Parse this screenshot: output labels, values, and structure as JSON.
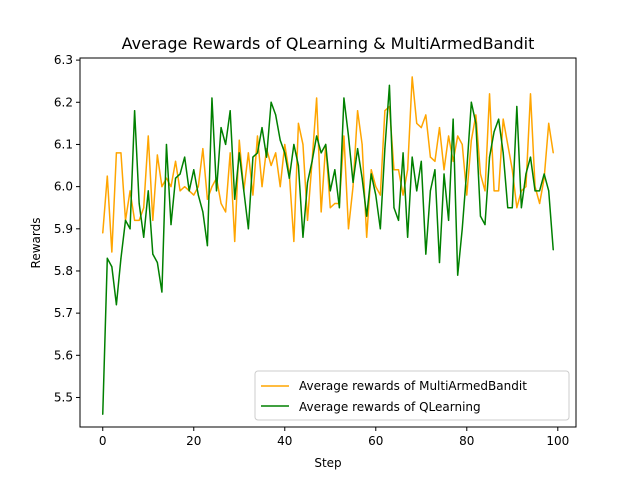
{
  "chart_data": {
    "type": "line",
    "title": "Average Rewards of QLearning & MultiArmedBandit",
    "xlabel": "Step",
    "ylabel": "Rewards",
    "xlim": [
      -5,
      104
    ],
    "ylim": [
      5.43,
      6.305
    ],
    "xticks": [
      0,
      20,
      40,
      60,
      80,
      100
    ],
    "yticks": [
      5.5,
      5.6,
      5.7,
      5.8,
      5.9,
      6.0,
      6.1,
      6.2,
      6.3
    ],
    "xtick_labels": [
      "0",
      "20",
      "40",
      "60",
      "80",
      "100"
    ],
    "ytick_labels": [
      "5.5",
      "5.6",
      "5.7",
      "5.8",
      "5.9",
      "6.0",
      "6.1",
      "6.2",
      "6.3"
    ],
    "grid": false,
    "legend_position": "lower-right",
    "x": [
      0,
      1,
      2,
      3,
      4,
      5,
      6,
      7,
      8,
      9,
      10,
      11,
      12,
      13,
      14,
      15,
      16,
      17,
      18,
      19,
      20,
      21,
      22,
      23,
      24,
      25,
      26,
      27,
      28,
      29,
      30,
      31,
      32,
      33,
      34,
      35,
      36,
      37,
      38,
      39,
      40,
      41,
      42,
      43,
      44,
      45,
      46,
      47,
      48,
      49,
      50,
      51,
      52,
      53,
      54,
      55,
      56,
      57,
      58,
      59,
      60,
      61,
      62,
      63,
      64,
      65,
      66,
      67,
      68,
      69,
      70,
      71,
      72,
      73,
      74,
      75,
      76,
      77,
      78,
      79,
      80,
      81,
      82,
      83,
      84,
      85,
      86,
      87,
      88,
      89,
      90,
      91,
      92,
      93,
      94,
      95,
      96,
      97,
      98,
      99
    ],
    "series": [
      {
        "name": "Average rewards of MultiArmedBandit",
        "color": "#ffa500",
        "values": [
          5.89,
          6.025,
          5.845,
          6.08,
          6.08,
          5.92,
          5.99,
          5.92,
          5.92,
          5.95,
          6.12,
          5.92,
          6.075,
          6.0,
          6.02,
          6.0,
          6.06,
          5.99,
          6.0,
          5.99,
          5.98,
          6.0,
          6.09,
          5.97,
          6.0,
          6.02,
          5.96,
          5.94,
          6.08,
          5.87,
          6.11,
          5.99,
          6.08,
          5.98,
          6.12,
          6.0,
          6.09,
          6.05,
          6.08,
          6.0,
          6.1,
          6.03,
          5.87,
          6.15,
          6.1,
          5.92,
          6.06,
          6.21,
          5.94,
          6.1,
          5.95,
          5.96,
          5.96,
          6.12,
          5.9,
          6.0,
          6.18,
          6.1,
          5.88,
          6.04,
          6.0,
          5.98,
          6.18,
          6.19,
          6.04,
          6.04,
          5.98,
          6.04,
          6.26,
          6.15,
          6.14,
          6.17,
          6.07,
          6.06,
          6.14,
          6.04,
          6.12,
          6.06,
          6.12,
          6.1,
          5.98,
          6.11,
          6.17,
          6.03,
          5.99,
          6.22,
          5.99,
          5.99,
          6.16,
          6.1,
          6.04,
          5.95,
          5.99,
          6.0,
          6.22,
          6.0,
          5.96,
          6.02,
          6.15,
          6.08
        ]
      },
      {
        "name": "Average rewards of QLearning",
        "color": "#008000",
        "values": [
          5.46,
          5.83,
          5.81,
          5.72,
          5.83,
          5.92,
          5.9,
          6.18,
          5.96,
          5.88,
          5.99,
          5.84,
          5.82,
          5.75,
          6.1,
          5.91,
          6.02,
          6.03,
          6.07,
          5.99,
          6.04,
          5.98,
          5.94,
          5.86,
          6.21,
          5.99,
          6.14,
          6.1,
          6.18,
          5.97,
          6.08,
          5.99,
          5.9,
          6.07,
          6.08,
          6.14,
          6.07,
          6.2,
          6.17,
          6.11,
          6.08,
          6.02,
          6.1,
          6.05,
          5.88,
          6.01,
          6.06,
          6.12,
          6.08,
          6.1,
          5.99,
          6.04,
          5.95,
          6.21,
          6.12,
          6.01,
          6.09,
          6.02,
          5.93,
          6.03,
          5.98,
          5.9,
          6.09,
          6.24,
          5.95,
          5.92,
          6.08,
          5.88,
          6.07,
          5.99,
          6.06,
          5.84,
          5.99,
          6.04,
          5.82,
          6.03,
          5.92,
          6.16,
          5.79,
          5.9,
          6.04,
          6.2,
          6.15,
          5.93,
          5.91,
          6.07,
          6.13,
          6.16,
          6.08,
          5.95,
          5.95,
          6.19,
          5.95,
          6.03,
          6.07,
          5.99,
          5.99,
          6.03,
          5.99,
          5.85
        ]
      }
    ]
  }
}
